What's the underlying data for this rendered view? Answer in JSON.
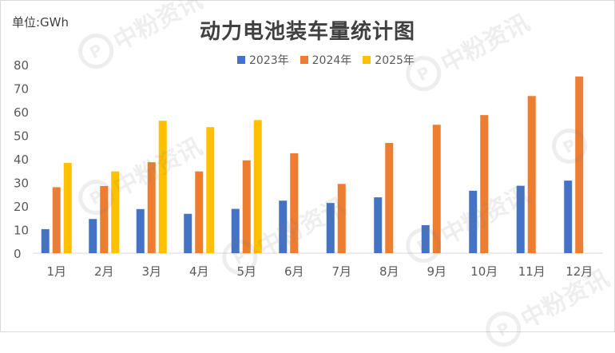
{
  "chart_data": {
    "type": "bar",
    "title": "动力电池装车量统计图",
    "unit_label": "单位:GWh",
    "categories": [
      "1月",
      "2月",
      "3月",
      "4月",
      "5月",
      "6月",
      "7月",
      "8月",
      "9月",
      "10月",
      "11月",
      "12月"
    ],
    "series": [
      {
        "name": "2023年",
        "color": "#4472c4",
        "values": [
          10.2,
          14.5,
          18.7,
          16.7,
          18.8,
          22.3,
          21.3,
          23.7,
          11.9,
          26.5,
          28.6,
          30.8
        ]
      },
      {
        "name": "2024年",
        "color": "#ed7d31",
        "values": [
          28.0,
          28.5,
          38.6,
          34.7,
          39.4,
          42.4,
          29.4,
          46.8,
          54.5,
          58.6,
          66.7,
          75.0
        ]
      },
      {
        "name": "2025年",
        "color": "#ffc000",
        "values": [
          38.3,
          34.7,
          56.2,
          53.5,
          56.5,
          null,
          null,
          null,
          null,
          null,
          null,
          null
        ]
      }
    ],
    "ylim": [
      0,
      80
    ],
    "yticks": [
      0,
      10,
      20,
      30,
      40,
      50,
      60,
      70,
      80
    ],
    "grid": false,
    "legend_position": "top"
  },
  "watermark": {
    "text": "中粉资讯",
    "glyph": "P"
  }
}
